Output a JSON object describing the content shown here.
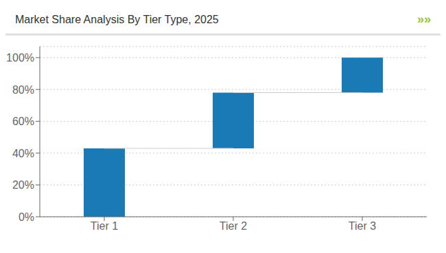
{
  "chart_data": {
    "type": "waterfall",
    "title": "Market Share Analysis By Tier Type, 2025",
    "annotations": [
      {
        "text": "»»",
        "color": "#8dc63f"
      }
    ],
    "categories": [
      "Tier 1",
      "Tier 2",
      "Tier 3"
    ],
    "values": [
      43,
      35,
      22
    ],
    "color": "#1a7ab5",
    "ylim": [
      0,
      107
    ],
    "yticks": [
      {
        "value": 0,
        "label": "0%"
      },
      {
        "value": 20,
        "label": "20%"
      },
      {
        "value": 40,
        "label": "40%"
      },
      {
        "value": 60,
        "label": "60%"
      },
      {
        "value": 80,
        "label": "80%"
      },
      {
        "value": 100,
        "label": "100%"
      }
    ],
    "grid": true
  }
}
